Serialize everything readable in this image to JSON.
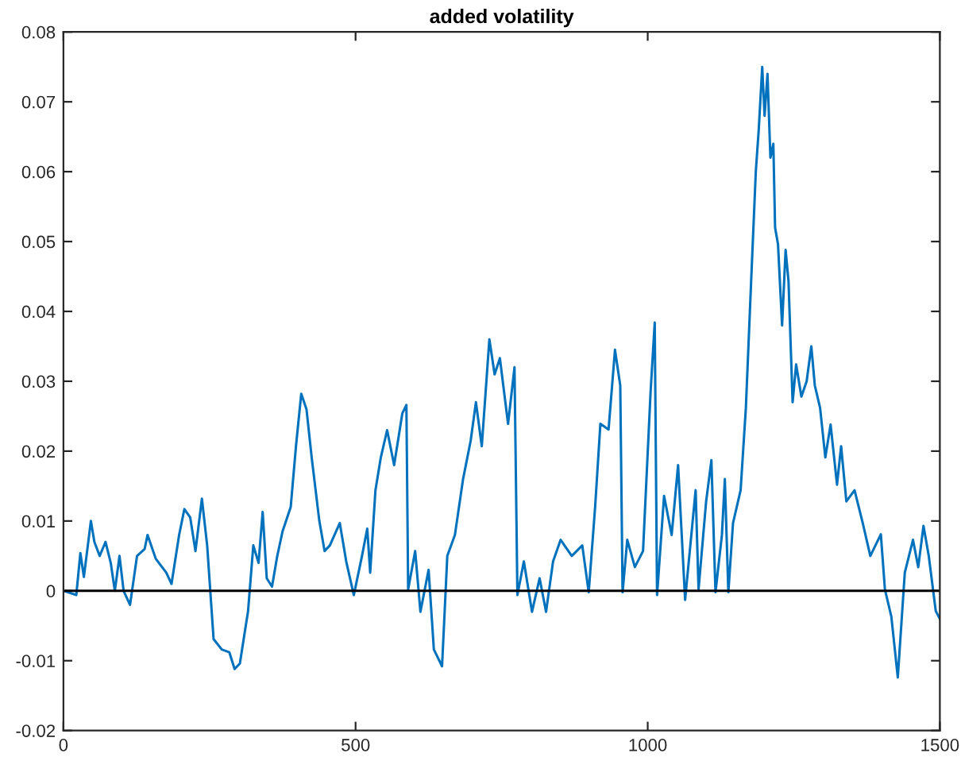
{
  "chart_data": {
    "type": "line",
    "title": "added volatility",
    "series": [
      {
        "color": "#0072bd",
        "x": [
          0,
          22,
          29,
          35,
          47,
          53,
          62,
          72,
          81,
          88,
          96,
          103,
          114,
          126,
          139,
          144,
          158,
          176,
          185,
          198,
          207,
          217,
          226,
          237,
          246,
          257,
          271,
          284,
          293,
          302,
          316,
          325,
          334,
          341,
          348,
          357,
          366,
          375,
          389,
          398,
          407,
          416,
          425,
          438,
          447,
          456,
          473,
          484,
          497,
          511,
          520,
          525,
          534,
          543,
          554,
          566,
          580,
          587,
          590,
          602,
          611,
          625,
          634,
          648,
          657,
          670,
          684,
          697,
          706,
          716,
          729,
          738,
          747,
          761,
          772,
          777,
          788,
          802,
          815,
          826,
          838,
          851,
          870,
          888,
          899,
          910,
          919,
          933,
          944,
          953,
          957,
          965,
          978,
          992,
          1005,
          1012,
          1016,
          1028,
          1041,
          1052,
          1064,
          1082,
          1087,
          1100,
          1109,
          1116,
          1127,
          1132,
          1138,
          1146,
          1159,
          1168,
          1177,
          1185,
          1190,
          1196,
          1200,
          1205,
          1210,
          1215,
          1218,
          1223,
          1230,
          1236,
          1241,
          1248,
          1254,
          1263,
          1272,
          1280,
          1286,
          1295,
          1304,
          1313,
          1324,
          1331,
          1340,
          1354,
          1368,
          1381,
          1399,
          1406,
          1417,
          1428,
          1440,
          1454,
          1463,
          1472,
          1481,
          1493,
          1500
        ],
        "values": [
          0,
          -0.0006,
          0.0054,
          0.002,
          0.01,
          0.007,
          0.005,
          0.007,
          0.004,
          0.0,
          0.005,
          0,
          -0.002,
          0.005,
          0.006,
          0.008,
          0.0046,
          0.0026,
          0.001,
          0.008,
          0.0117,
          0.0105,
          0.0057,
          0.0132,
          0.0065,
          -0.0069,
          -0.0084,
          -0.0088,
          -0.0112,
          -0.0104,
          -0.0029,
          0.0065,
          0.004,
          0.0113,
          0.0018,
          0.0006,
          0.005,
          0.0085,
          0.012,
          0.0207,
          0.0282,
          0.026,
          0.019,
          0.01,
          0.0057,
          0.0065,
          0.0097,
          0.0042,
          -0.0006,
          0.005,
          0.0089,
          0.0026,
          0.0144,
          0.019,
          0.023,
          0.018,
          0.0254,
          0.0266,
          0.0002,
          0.0057,
          -0.003,
          0.003,
          -0.0084,
          -0.0108,
          0.005,
          0.008,
          0.016,
          0.0215,
          0.027,
          0.0207,
          0.036,
          0.031,
          0.0333,
          0.0239,
          0.032,
          -0.0006,
          0.0042,
          -0.003,
          0.0018,
          -0.003,
          0.0042,
          0.0073,
          0.005,
          0.0065,
          -0.0002,
          0.012,
          0.0239,
          0.0231,
          0.0345,
          0.0294,
          -0.0002,
          0.0073,
          0.0034,
          0.0057,
          0.0286,
          0.0384,
          -0.0006,
          0.0136,
          0.008,
          0.018,
          -0.0013,
          0.0144,
          0.0002,
          0.0128,
          0.0187,
          -0.0002,
          0.008,
          0.016,
          -0.0002,
          0.0097,
          0.0144,
          0.0262,
          0.0443,
          0.06,
          0.066,
          0.075,
          0.068,
          0.074,
          0.062,
          0.064,
          0.052,
          0.0496,
          0.038,
          0.0488,
          0.0443,
          0.027,
          0.0324,
          0.0278,
          0.03,
          0.035,
          0.0294,
          0.0262,
          0.0191,
          0.0238,
          0.0152,
          0.0207,
          0.0128,
          0.0144,
          0.0097,
          0.005,
          0.0081,
          0.0002,
          -0.0037,
          -0.0124,
          0.0026,
          0.0073,
          0.0034,
          0.0093,
          0.005,
          -0.0029,
          -0.004
        ]
      }
    ],
    "xlim": [
      0,
      1500
    ],
    "xticks": [
      0,
      500,
      1000,
      1500
    ],
    "ylim": [
      -0.02,
      0.08
    ],
    "yticks": [
      -0.02,
      -0.01,
      0,
      0.01,
      0.02,
      0.03,
      0.04,
      0.05,
      0.06,
      0.07,
      0.08
    ],
    "ref_lines": [
      {
        "axis": "y",
        "value": 0,
        "color": "#000000",
        "line_style": "solid"
      }
    ],
    "grid": false,
    "legend": false,
    "marker": "none",
    "line_style": "solid"
  }
}
